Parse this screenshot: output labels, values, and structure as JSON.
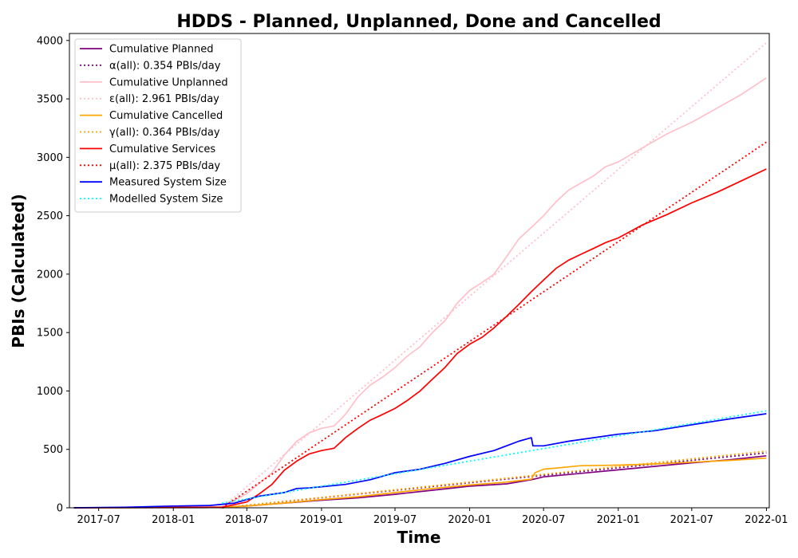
{
  "chart_data": {
    "type": "line",
    "title": "HDDS - Planned, Unplanned, Done  and Cancelled",
    "xlabel": "Time",
    "ylabel": "PBIs (Calculated)",
    "xlim": [
      "2017-04-20",
      "2022-01-08"
    ],
    "ylim": [
      0,
      4060
    ],
    "x_ticks": [
      "2017-07",
      "2018-01",
      "2018-07",
      "2019-01",
      "2019-07",
      "2020-01",
      "2020-07",
      "2021-01",
      "2021-07",
      "2022-01"
    ],
    "y_ticks": [
      0,
      500,
      1000,
      1500,
      2000,
      2500,
      3000,
      3500,
      4000
    ],
    "grid": false,
    "legend_position": "top-left",
    "series": [
      {
        "name": "Cumulative Planned",
        "color": "#800080",
        "style": "solid",
        "points": [
          [
            "2017-05-01",
            0
          ],
          [
            "2018-04-01",
            2
          ],
          [
            "2018-05-01",
            5
          ],
          [
            "2018-07-01",
            15
          ],
          [
            "2018-10-01",
            40
          ],
          [
            "2019-01-01",
            65
          ],
          [
            "2019-04-01",
            85
          ],
          [
            "2019-07-01",
            115
          ],
          [
            "2019-10-01",
            150
          ],
          [
            "2020-01-01",
            185
          ],
          [
            "2020-04-01",
            205
          ],
          [
            "2020-06-01",
            240
          ],
          [
            "2020-07-01",
            265
          ],
          [
            "2020-10-01",
            295
          ],
          [
            "2021-01-01",
            325
          ],
          [
            "2021-04-01",
            355
          ],
          [
            "2021-07-01",
            385
          ],
          [
            "2021-10-01",
            410
          ],
          [
            "2022-01-01",
            445
          ]
        ]
      },
      {
        "name": "α(all): 0.354 PBIs/day",
        "color": "#800080",
        "style": "dotted",
        "points": [
          [
            "2018-05-01",
            0
          ],
          [
            "2022-01-01",
            470
          ]
        ]
      },
      {
        "name": "Cumulative Unplanned",
        "color": "#ffc0cb",
        "style": "solid",
        "points": [
          [
            "2017-05-01",
            0
          ],
          [
            "2018-03-01",
            2
          ],
          [
            "2018-05-01",
            10
          ],
          [
            "2018-07-01",
            120
          ],
          [
            "2018-09-01",
            300
          ],
          [
            "2018-10-01",
            450
          ],
          [
            "2018-11-01",
            570
          ],
          [
            "2018-12-01",
            640
          ],
          [
            "2019-01-01",
            680
          ],
          [
            "2019-02-01",
            700
          ],
          [
            "2019-03-01",
            800
          ],
          [
            "2019-04-01",
            950
          ],
          [
            "2019-05-01",
            1050
          ],
          [
            "2019-06-01",
            1120
          ],
          [
            "2019-07-01",
            1200
          ],
          [
            "2019-08-01",
            1300
          ],
          [
            "2019-09-01",
            1380
          ],
          [
            "2019-10-01",
            1500
          ],
          [
            "2019-11-01",
            1600
          ],
          [
            "2019-12-01",
            1750
          ],
          [
            "2020-01-01",
            1860
          ],
          [
            "2020-02-01",
            1930
          ],
          [
            "2020-03-01",
            2000
          ],
          [
            "2020-04-01",
            2150
          ],
          [
            "2020-05-01",
            2300
          ],
          [
            "2020-06-01",
            2400
          ],
          [
            "2020-07-01",
            2500
          ],
          [
            "2020-08-01",
            2620
          ],
          [
            "2020-09-01",
            2720
          ],
          [
            "2020-10-01",
            2780
          ],
          [
            "2020-11-01",
            2840
          ],
          [
            "2020-12-01",
            2920
          ],
          [
            "2021-01-01",
            2960
          ],
          [
            "2021-03-01",
            3080
          ],
          [
            "2021-05-01",
            3200
          ],
          [
            "2021-07-01",
            3300
          ],
          [
            "2021-09-01",
            3420
          ],
          [
            "2021-11-01",
            3540
          ],
          [
            "2022-01-01",
            3680
          ]
        ]
      },
      {
        "name": "ε(all): 2.961 PBIs/day",
        "color": "#ffc0cb",
        "style": "dotted",
        "points": [
          [
            "2018-05-01",
            0
          ],
          [
            "2022-01-01",
            3980
          ]
        ]
      },
      {
        "name": "Cumulative Cancelled",
        "color": "#ffa500",
        "style": "solid",
        "points": [
          [
            "2017-05-01",
            0
          ],
          [
            "2018-05-01",
            3
          ],
          [
            "2018-07-01",
            15
          ],
          [
            "2018-10-01",
            40
          ],
          [
            "2019-01-01",
            70
          ],
          [
            "2019-04-01",
            95
          ],
          [
            "2019-07-01",
            130
          ],
          [
            "2019-10-01",
            165
          ],
          [
            "2020-01-01",
            195
          ],
          [
            "2020-04-01",
            220
          ],
          [
            "2020-06-01",
            245
          ],
          [
            "2020-06-10",
            300
          ],
          [
            "2020-07-01",
            330
          ],
          [
            "2020-09-01",
            350
          ],
          [
            "2020-10-01",
            360
          ],
          [
            "2021-01-01",
            365
          ],
          [
            "2021-04-01",
            375
          ],
          [
            "2021-07-01",
            390
          ],
          [
            "2021-10-01",
            405
          ],
          [
            "2022-01-01",
            425
          ]
        ]
      },
      {
        "name": "γ(all): 0.364 PBIs/day",
        "color": "#ffa500",
        "style": "dotted",
        "points": [
          [
            "2018-05-01",
            0
          ],
          [
            "2022-01-01",
            485
          ]
        ]
      },
      {
        "name": "Cumulative Services",
        "color": "#ff0000",
        "style": "solid",
        "points": [
          [
            "2017-05-01",
            0
          ],
          [
            "2018-05-01",
            5
          ],
          [
            "2018-07-01",
            50
          ],
          [
            "2018-08-01",
            120
          ],
          [
            "2018-09-01",
            200
          ],
          [
            "2018-10-01",
            320
          ],
          [
            "2018-11-01",
            400
          ],
          [
            "2018-12-01",
            460
          ],
          [
            "2019-01-01",
            490
          ],
          [
            "2019-02-01",
            510
          ],
          [
            "2019-03-01",
            600
          ],
          [
            "2019-04-01",
            680
          ],
          [
            "2019-05-01",
            750
          ],
          [
            "2019-06-01",
            800
          ],
          [
            "2019-07-01",
            850
          ],
          [
            "2019-08-01",
            920
          ],
          [
            "2019-09-01",
            1000
          ],
          [
            "2019-10-01",
            1100
          ],
          [
            "2019-11-01",
            1200
          ],
          [
            "2019-12-01",
            1320
          ],
          [
            "2020-01-01",
            1400
          ],
          [
            "2020-02-01",
            1460
          ],
          [
            "2020-03-01",
            1540
          ],
          [
            "2020-04-01",
            1640
          ],
          [
            "2020-05-01",
            1740
          ],
          [
            "2020-06-01",
            1850
          ],
          [
            "2020-07-01",
            1950
          ],
          [
            "2020-08-01",
            2050
          ],
          [
            "2020-09-01",
            2120
          ],
          [
            "2020-10-01",
            2170
          ],
          [
            "2020-11-01",
            2220
          ],
          [
            "2020-12-01",
            2270
          ],
          [
            "2021-01-01",
            2310
          ],
          [
            "2021-03-01",
            2420
          ],
          [
            "2021-05-01",
            2510
          ],
          [
            "2021-07-01",
            2610
          ],
          [
            "2021-09-01",
            2700
          ],
          [
            "2021-11-01",
            2800
          ],
          [
            "2022-01-01",
            2900
          ]
        ]
      },
      {
        "name": "μ(all): 2.375 PBIs/day",
        "color": "#ff0000",
        "style": "dotted",
        "points": [
          [
            "2018-05-01",
            0
          ],
          [
            "2022-01-01",
            3130
          ]
        ]
      },
      {
        "name": "Measured System Size",
        "color": "#0000ff",
        "style": "solid",
        "points": [
          [
            "2017-05-01",
            0
          ],
          [
            "2017-09-01",
            5
          ],
          [
            "2018-01-01",
            15
          ],
          [
            "2018-04-01",
            20
          ],
          [
            "2018-06-01",
            40
          ],
          [
            "2018-07-01",
            70
          ],
          [
            "2018-08-01",
            100
          ],
          [
            "2018-09-01",
            115
          ],
          [
            "2018-10-01",
            130
          ],
          [
            "2018-11-01",
            165
          ],
          [
            "2018-12-01",
            170
          ],
          [
            "2019-01-01",
            180
          ],
          [
            "2019-03-01",
            200
          ],
          [
            "2019-05-01",
            240
          ],
          [
            "2019-07-01",
            300
          ],
          [
            "2019-09-01",
            330
          ],
          [
            "2019-11-01",
            380
          ],
          [
            "2020-01-01",
            440
          ],
          [
            "2020-03-01",
            490
          ],
          [
            "2020-05-01",
            570
          ],
          [
            "2020-06-01",
            600
          ],
          [
            "2020-06-05",
            530
          ],
          [
            "2020-07-01",
            530
          ],
          [
            "2020-09-01",
            570
          ],
          [
            "2020-11-01",
            600
          ],
          [
            "2021-01-01",
            630
          ],
          [
            "2021-04-01",
            660
          ],
          [
            "2021-07-01",
            710
          ],
          [
            "2021-10-01",
            760
          ],
          [
            "2022-01-01",
            805
          ]
        ]
      },
      {
        "name": "Modelled System Size",
        "color": "#00ffff",
        "style": "dotted",
        "points": [
          [
            "2018-05-01",
            40
          ],
          [
            "2022-01-01",
            830
          ]
        ]
      }
    ]
  }
}
